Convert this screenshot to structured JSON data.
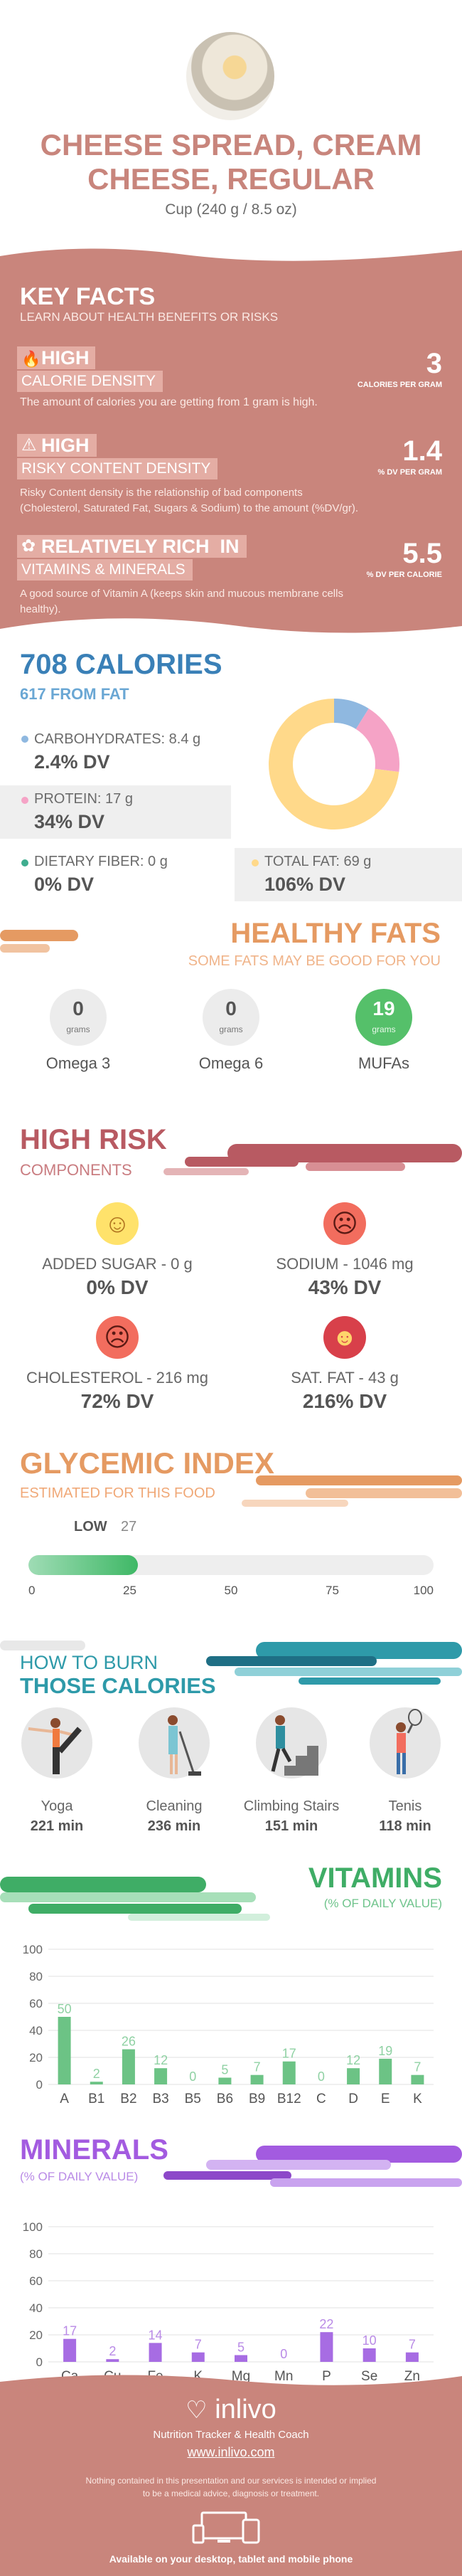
{
  "header": {
    "title_line1": "CHEESE SPREAD, CREAM",
    "title_line2": "CHEESE, REGULAR",
    "serving": "Cup (240 g / 8.5 oz)"
  },
  "key_facts": {
    "title": "KEY FACTS",
    "subtitle": "LEARN ABOUT HEALTH BENEFITS OR RISKS",
    "facts": [
      {
        "level": "HIGH",
        "name": "CALORIE DENSITY",
        "value": "3",
        "unit": "CALORIES PER GRAM",
        "desc": "The amount of calories you are getting from 1 gram is high.",
        "icon": "flame-icon"
      },
      {
        "level": "HIGH",
        "name": "RISKY CONTENT DENSITY",
        "value": "1.4",
        "unit": "% DV PER GRAM",
        "desc1": "Risky Content density is the relationship of bad components",
        "desc2": "(Cholesterol, Saturated Fat, Sugars & Sodium) to the amount (%DV/gr).",
        "icon": "warning-icon"
      },
      {
        "level": "RELATIVELY RICH  IN",
        "name": "VITAMINS & MINERALS",
        "value": "5.5",
        "unit": "% DV PER CALORIE",
        "desc1": "A good source of Vitamin A (keeps skin and mucous membrane cells",
        "desc2": "healthy).",
        "icon": "leaf-icon"
      }
    ]
  },
  "calories": {
    "title": "708 CALORIES",
    "from_fat": "617 FROM FAT",
    "carbs_label": "CARBOHYDRATES: 8.4 g",
    "carbs_dv": "2.4% DV",
    "protein_label": "PROTEIN: 17 g",
    "protein_dv": "34% DV",
    "fiber_label": "DIETARY FIBER: 0 g",
    "fiber_dv": "0% DV",
    "fat_label": "TOTAL FAT: 69 g",
    "fat_dv": "106% DV",
    "colors": {
      "carbs": "#8fb8e0",
      "protein": "#f5a3c6",
      "fiber": "#3fad8f",
      "fat": "#ffd98a"
    }
  },
  "chart_data": [
    {
      "type": "pie",
      "categories": [
        "CARBOHYDRATES",
        "PROTEIN",
        "TOTAL FAT"
      ],
      "values": [
        8.4,
        17,
        69
      ]
    },
    {
      "type": "bar",
      "title": "VITAMINS",
      "ylabel": "(% OF DAILY VALUE)",
      "categories": [
        "A",
        "B1",
        "B2",
        "B3",
        "B5",
        "B6",
        "B9",
        "B12",
        "C",
        "D",
        "E",
        "K"
      ],
      "values": [
        50,
        2,
        26,
        12,
        0,
        5,
        7,
        17,
        0,
        12,
        19,
        7
      ],
      "ylim": [
        0,
        100
      ],
      "yticks": [
        "0",
        "20",
        "40",
        "60",
        "80",
        "100"
      ]
    },
    {
      "type": "bar",
      "title": "MINERALS",
      "ylabel": "(% OF DAILY VALUE)",
      "categories": [
        "Ca",
        "Cu",
        "Fe",
        "K",
        "Mg",
        "Mn",
        "P",
        "Se",
        "Zn"
      ],
      "values": [
        17,
        2,
        14,
        7,
        5,
        0,
        22,
        10,
        7
      ],
      "ylim": [
        0,
        100
      ],
      "yticks": [
        "0",
        "20",
        "40",
        "60",
        "80",
        "100"
      ]
    }
  ],
  "healthy_fats": {
    "title": "HEALTHY FATS",
    "subtitle": "SOME FATS MAY BE GOOD FOR YOU",
    "unit": "grams",
    "items": [
      {
        "name": "Omega 3",
        "value": "0"
      },
      {
        "name": "Omega 6",
        "value": "0"
      },
      {
        "name": "MUFAs",
        "value": "19"
      }
    ]
  },
  "high_risk": {
    "title": "HIGH RISK",
    "subtitle": "COMPONENTS",
    "items": [
      {
        "label": "ADDED SUGAR - 0 g",
        "dv": "0% DV",
        "icon": "happy-face-icon"
      },
      {
        "label": "SODIUM - 1046 mg",
        "dv": "43% DV",
        "icon": "sad-face-icon"
      },
      {
        "label": "CHOLESTEROL - 216 mg",
        "dv": "72% DV",
        "icon": "sad-face-icon"
      },
      {
        "label": "SAT. FAT - 43 g",
        "dv": "216% DV",
        "icon": "dizzy-face-icon"
      }
    ]
  },
  "glycemic": {
    "title": "GLYCEMIC INDEX",
    "subtitle": "ESTIMATED FOR THIS FOOD",
    "level": "LOW",
    "value": "27",
    "value_num": 27,
    "ticks": [
      "0",
      "25",
      "50",
      "75",
      "100"
    ]
  },
  "burn": {
    "title1": "HOW TO BURN",
    "title2": "THOSE CALORIES",
    "items": [
      {
        "name": "Yoga",
        "time": "221 min"
      },
      {
        "name": "Cleaning",
        "time": "236 min"
      },
      {
        "name": "Climbing Stairs",
        "time": "151 min"
      },
      {
        "name": "Tenis",
        "time": "118 min"
      }
    ]
  },
  "footer": {
    "brand": "inlivo",
    "tagline": "Nutrition Tracker & Health Coach",
    "url": "www.inlivo.com",
    "disclaimer1": "Nothing contained in this presentation and our services is intended or implied",
    "disclaimer2": "to be a medical advice, diagnosis or treatment.",
    "devices": "Available on your desktop, tablet and mobile phone"
  }
}
